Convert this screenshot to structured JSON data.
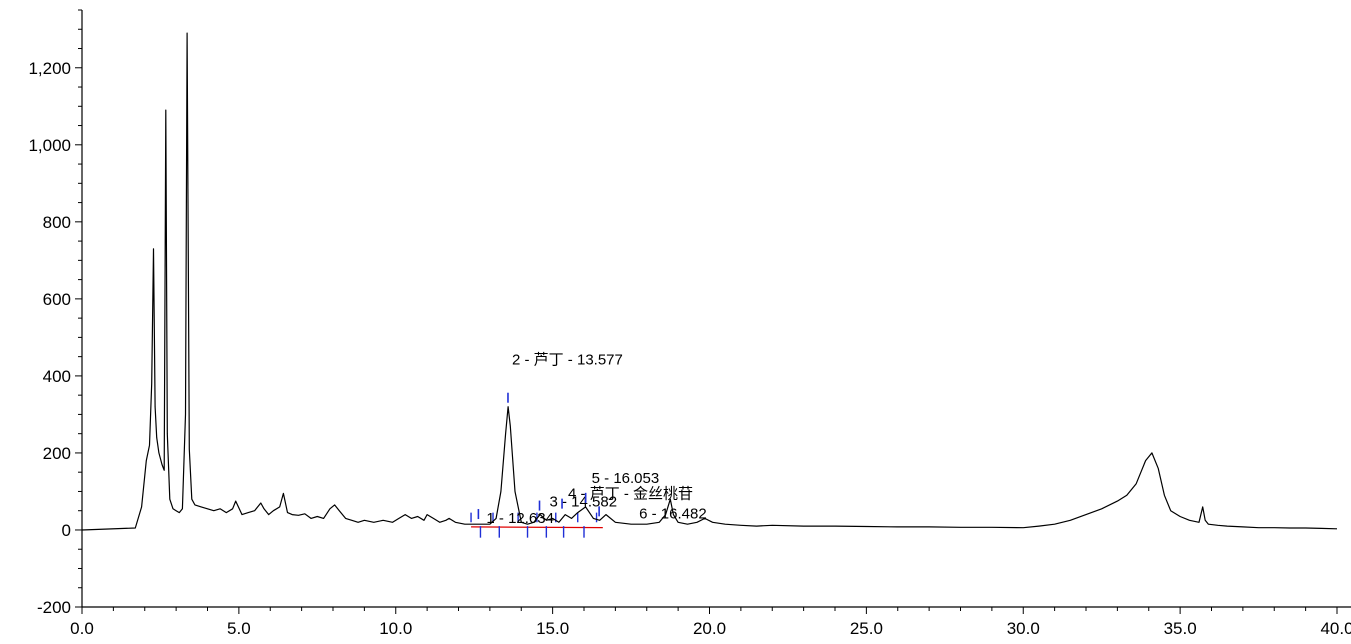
{
  "chart_data": {
    "type": "line",
    "title": "",
    "xlabel": "",
    "ylabel": "",
    "xlim": [
      0,
      40
    ],
    "ylim": [
      -200,
      1350
    ],
    "x_ticks": [
      0,
      5,
      10,
      15,
      20,
      25,
      30,
      35,
      40
    ],
    "x_tick_labels": [
      "0.0",
      "5.0",
      "10.0",
      "15.0",
      "20.0",
      "25.0",
      "30.0",
      "35.0",
      "40.0"
    ],
    "y_ticks": [
      -200,
      0,
      200,
      400,
      600,
      800,
      1000,
      1200
    ],
    "y_tick_labels": [
      "-200",
      "0",
      "200",
      "400",
      "600",
      "800",
      "1,000",
      "1,200"
    ],
    "grid": false,
    "legend": "none",
    "colors": {
      "trace": "#000000",
      "baseline": "#e00000",
      "markers": "#1f2fd6"
    },
    "series": [
      {
        "x": [
          0,
          1.7,
          1.9,
          2.05,
          2.15,
          2.22,
          2.28,
          2.33,
          2.38,
          2.45,
          2.55,
          2.62,
          2.67,
          2.72,
          2.8,
          2.9,
          3.0,
          3.1,
          3.2,
          3.3,
          3.35,
          3.42,
          3.5,
          3.6,
          3.8,
          4.0,
          4.2,
          4.4,
          4.6,
          4.8,
          4.9,
          5.1,
          5.3,
          5.5,
          5.7,
          5.8,
          5.95,
          6.1,
          6.3,
          6.42,
          6.55,
          6.7,
          6.9,
          7.1,
          7.3,
          7.5,
          7.7,
          7.9,
          8.05,
          8.2,
          8.4,
          8.6,
          8.8,
          9.0,
          9.3,
          9.6,
          9.9,
          10.1,
          10.3,
          10.5,
          10.7,
          10.9,
          11.0,
          11.2,
          11.4,
          11.6,
          11.7,
          11.9,
          12.2,
          12.5,
          12.8,
          13.0,
          13.2,
          13.35,
          13.5,
          13.58,
          13.65,
          13.8,
          14.0,
          14.2,
          14.4,
          14.6,
          14.8,
          15.0,
          15.2,
          15.4,
          15.6,
          15.8,
          16.05,
          16.3,
          16.5,
          16.7,
          17.0,
          17.5,
          18.0,
          18.4,
          18.6,
          18.75,
          18.85,
          19.0,
          19.3,
          19.6,
          19.85,
          20.1,
          20.5,
          21.0,
          21.5,
          22.0,
          23.0,
          24.0,
          25.0,
          26.0,
          27.0,
          28.0,
          29.0,
          30.0,
          30.5,
          31.0,
          31.5,
          32.0,
          32.5,
          33.0,
          33.3,
          33.6,
          33.9,
          34.1,
          34.3,
          34.5,
          34.7,
          35.0,
          35.3,
          35.6,
          35.72,
          35.8,
          35.9,
          36.2,
          36.5,
          37.0,
          37.5,
          38.0,
          38.5,
          39.0,
          39.5,
          40.0
        ],
        "y": [
          0,
          5,
          60,
          180,
          220,
          380,
          730,
          320,
          240,
          200,
          170,
          155,
          1090,
          250,
          80,
          55,
          50,
          45,
          55,
          300,
          1290,
          210,
          80,
          65,
          60,
          55,
          50,
          55,
          45,
          55,
          75,
          40,
          45,
          50,
          70,
          55,
          40,
          50,
          60,
          95,
          45,
          40,
          38,
          42,
          30,
          35,
          30,
          55,
          65,
          50,
          30,
          25,
          20,
          25,
          20,
          25,
          20,
          30,
          40,
          30,
          35,
          25,
          40,
          30,
          20,
          25,
          30,
          20,
          15,
          15,
          15,
          15,
          30,
          100,
          250,
          320,
          270,
          100,
          20,
          15,
          20,
          40,
          25,
          30,
          20,
          40,
          30,
          45,
          60,
          30,
          25,
          40,
          20,
          15,
          15,
          20,
          40,
          80,
          40,
          20,
          15,
          20,
          30,
          20,
          15,
          12,
          10,
          12,
          10,
          10,
          9,
          8,
          8,
          7,
          7,
          6,
          10,
          15,
          25,
          40,
          55,
          75,
          90,
          120,
          180,
          200,
          160,
          90,
          50,
          35,
          25,
          20,
          60,
          25,
          15,
          12,
          10,
          8,
          6,
          6,
          5,
          5,
          4,
          3
        ]
      }
    ],
    "annotations": [
      {
        "x": 12.634,
        "y": 18,
        "label": "1 - 12.634"
      },
      {
        "x": 13.577,
        "y": 320,
        "label": "2 - 芦丁 - 13.577"
      },
      {
        "x": 14.582,
        "y": 40,
        "label": "3 - 14.582"
      },
      {
        "x": 15.3,
        "y": 45,
        "label": "4 - 芦丁 - 金丝桃苷"
      },
      {
        "x": 16.053,
        "y": 60,
        "label": "5 - 16.053"
      },
      {
        "x": 16.482,
        "y": 25,
        "label": "6 - 16.482"
      }
    ],
    "integration_marks": [
      12.4,
      12.7,
      13.1,
      13.3,
      13.9,
      14.2,
      14.5,
      14.8,
      15.1,
      15.35,
      15.8,
      16.0,
      16.4
    ],
    "baseline_segment": [
      12.4,
      16.6
    ]
  }
}
